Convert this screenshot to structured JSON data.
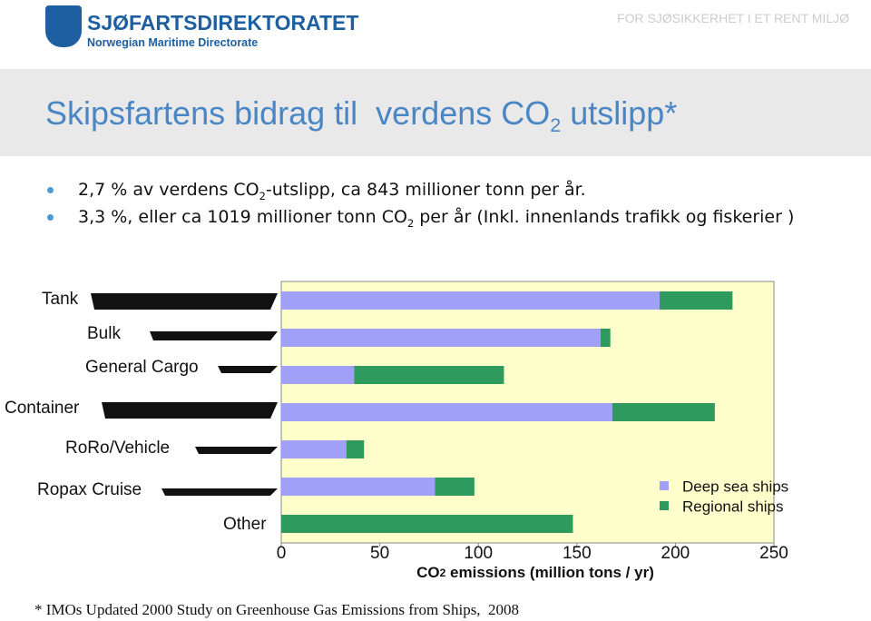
{
  "header": {
    "logo_name": "SJØFARTSDIREKTORATET",
    "logo_subtitle": "Norwegian Maritime Directorate",
    "slogan": "FOR SJØSIKKERHET I ET RENT MILJØ"
  },
  "title": {
    "main": "Skipsfartens bidrag til  verdens CO",
    "sub": "2",
    "rest": " utslipp*"
  },
  "bullets": [
    {
      "main": "2,7 % av verdens CO",
      "sub": "2",
      "rest": "-utslipp, ca 843 millioner tonn per år."
    },
    {
      "main": "3,3 %, eller ca 1019 millioner tonn CO",
      "sub": "2",
      "rest": " per år (Inkl. innenlands trafikk og fiskerier )"
    }
  ],
  "chart_data": {
    "type": "hbar-stacked",
    "categories": [
      "Tank",
      "Bulk",
      "General Cargo",
      "Container",
      "RoRo/Vehicle",
      "Ropax Cruise",
      "Other"
    ],
    "series": [
      {
        "name": "Deep sea ships",
        "color": "#a0a0f8",
        "values": [
          192,
          162,
          37,
          168,
          33,
          78,
          0
        ]
      },
      {
        "name": "Regional ships",
        "color": "#2e9a5e",
        "values": [
          37,
          5,
          76,
          52,
          9,
          20,
          148
        ]
      }
    ],
    "xlim": [
      0,
      250
    ],
    "xticks": [
      0,
      50,
      100,
      150,
      200,
      250
    ],
    "xlabel": {
      "main": "CO",
      "sub": "2",
      "rest": " emissions (million tons / yr)"
    },
    "background": "#ffffcc"
  },
  "footnote": "* IMOs Updated 2000 Study on Greenhouse Gas Emissions from Ships,  2008"
}
